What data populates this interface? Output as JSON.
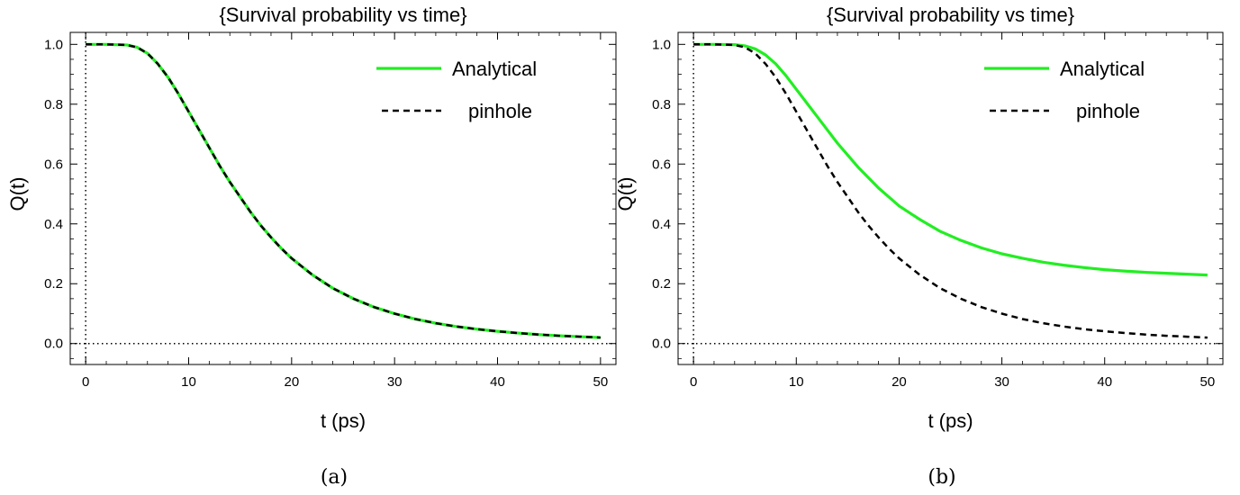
{
  "chart_data": [
    {
      "type": "line",
      "title": "{Survival probability vs time}",
      "xlabel": "t (ps)",
      "ylabel": "Q(t)",
      "caption": "(a)",
      "xlim": [
        -1.5,
        51.5
      ],
      "ylim": [
        -0.07,
        1.04
      ],
      "xticks": [
        0,
        10,
        20,
        30,
        40,
        50
      ],
      "xtick_labels": [
        "0",
        "10",
        "20",
        "30",
        "40",
        "50"
      ],
      "yticks": [
        0.0,
        0.2,
        0.4,
        0.6,
        0.8,
        1.0
      ],
      "ytick_labels": [
        "0.0",
        "0.2",
        "0.4",
        "0.6",
        "0.8",
        "1.0"
      ],
      "grid": false,
      "legend_position": "top-right",
      "reference_lines": {
        "x": 0,
        "y": 0,
        "style": "dotted"
      },
      "series": [
        {
          "name": "Analytical",
          "color": "#22ee22",
          "style": "solid",
          "x": [
            0,
            2,
            4,
            5,
            6,
            7,
            8,
            9,
            10,
            11,
            12,
            13,
            14,
            15,
            16,
            17,
            18,
            19,
            20,
            22,
            24,
            26,
            28,
            30,
            32,
            34,
            36,
            38,
            40,
            42,
            44,
            46,
            48,
            50
          ],
          "y": [
            1.0,
            1.0,
            0.998,
            0.99,
            0.97,
            0.935,
            0.89,
            0.835,
            0.775,
            0.715,
            0.655,
            0.595,
            0.54,
            0.49,
            0.44,
            0.395,
            0.355,
            0.318,
            0.285,
            0.23,
            0.185,
            0.15,
            0.122,
            0.1,
            0.082,
            0.068,
            0.057,
            0.048,
            0.041,
            0.035,
            0.03,
            0.026,
            0.023,
            0.02
          ]
        },
        {
          "name": "pinhole",
          "color": "#000000",
          "style": "dashed",
          "x": [
            0,
            2,
            4,
            5,
            6,
            7,
            8,
            9,
            10,
            11,
            12,
            13,
            14,
            15,
            16,
            17,
            18,
            19,
            20,
            22,
            24,
            26,
            28,
            30,
            32,
            34,
            36,
            38,
            40,
            42,
            44,
            46,
            48,
            50
          ],
          "y": [
            1.0,
            1.0,
            0.998,
            0.99,
            0.97,
            0.935,
            0.89,
            0.835,
            0.775,
            0.715,
            0.655,
            0.595,
            0.54,
            0.49,
            0.44,
            0.395,
            0.355,
            0.318,
            0.285,
            0.23,
            0.185,
            0.15,
            0.122,
            0.1,
            0.082,
            0.068,
            0.057,
            0.048,
            0.041,
            0.035,
            0.03,
            0.026,
            0.023,
            0.02
          ]
        }
      ]
    },
    {
      "type": "line",
      "title": "{Survival probability vs time}",
      "xlabel": "t (ps)",
      "ylabel": "Q(t)",
      "caption": "(b)",
      "xlim": [
        -1.5,
        51.5
      ],
      "ylim": [
        -0.07,
        1.04
      ],
      "xticks": [
        0,
        10,
        20,
        30,
        40,
        50
      ],
      "xtick_labels": [
        "0",
        "10",
        "20",
        "30",
        "40",
        "50"
      ],
      "yticks": [
        0.0,
        0.2,
        0.4,
        0.6,
        0.8,
        1.0
      ],
      "ytick_labels": [
        "0.0",
        "0.2",
        "0.4",
        "0.6",
        "0.8",
        "1.0"
      ],
      "grid": false,
      "legend_position": "top-right",
      "reference_lines": {
        "x": 0,
        "y": 0,
        "style": "dotted"
      },
      "series": [
        {
          "name": "Analytical",
          "color": "#22ee22",
          "style": "solid",
          "x": [
            0,
            2,
            4,
            5,
            6,
            7,
            8,
            9,
            10,
            11,
            12,
            13,
            14,
            15,
            16,
            17,
            18,
            19,
            20,
            22,
            24,
            26,
            28,
            30,
            32,
            34,
            36,
            38,
            40,
            42,
            44,
            46,
            48,
            50
          ],
          "y": [
            1.0,
            1.0,
            0.999,
            0.995,
            0.985,
            0.965,
            0.935,
            0.895,
            0.85,
            0.805,
            0.76,
            0.715,
            0.67,
            0.63,
            0.59,
            0.555,
            0.52,
            0.49,
            0.46,
            0.415,
            0.375,
            0.345,
            0.32,
            0.3,
            0.285,
            0.272,
            0.262,
            0.254,
            0.247,
            0.242,
            0.238,
            0.235,
            0.232,
            0.229
          ]
        },
        {
          "name": "pinhole",
          "color": "#000000",
          "style": "dashed",
          "x": [
            0,
            2,
            4,
            5,
            6,
            7,
            8,
            9,
            10,
            11,
            12,
            13,
            14,
            15,
            16,
            17,
            18,
            19,
            20,
            22,
            24,
            26,
            28,
            30,
            32,
            34,
            36,
            38,
            40,
            42,
            44,
            46,
            48,
            50
          ],
          "y": [
            1.0,
            1.0,
            0.998,
            0.99,
            0.97,
            0.935,
            0.89,
            0.835,
            0.775,
            0.715,
            0.655,
            0.595,
            0.54,
            0.49,
            0.44,
            0.395,
            0.355,
            0.318,
            0.285,
            0.23,
            0.185,
            0.15,
            0.122,
            0.1,
            0.082,
            0.068,
            0.057,
            0.048,
            0.041,
            0.035,
            0.03,
            0.026,
            0.023,
            0.02
          ]
        }
      ]
    }
  ]
}
